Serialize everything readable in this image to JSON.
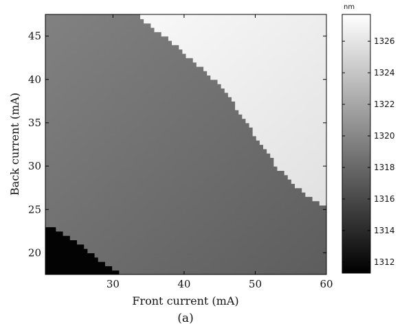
{
  "chart_data": {
    "type": "heatmap",
    "xlabel": "Front current (mA)",
    "ylabel": "Back current (mA)",
    "caption": "(a)",
    "colorbar_unit": "nm",
    "xlim": [
      20.5,
      60
    ],
    "ylim": [
      17.5,
      47.5
    ],
    "xticks": [
      30,
      40,
      50,
      60
    ],
    "yticks": [
      20,
      25,
      30,
      35,
      40,
      45
    ],
    "colorbar_range": [
      1311.3,
      1327.7
    ],
    "colorbar_ticks": [
      1312,
      1314,
      1316,
      1318,
      1320,
      1322,
      1324,
      1326
    ],
    "colormap": "gray",
    "regions": [
      {
        "name": "upper mode (light)",
        "value_range": [
          1325.5,
          1327.6
        ],
        "boundary": [
          [
            33.2,
            47.5
          ],
          [
            38,
            44.5
          ],
          [
            44,
            40.2
          ],
          [
            47,
            37.2
          ],
          [
            50,
            33.5
          ],
          [
            53,
            30
          ],
          [
            56,
            27.5
          ],
          [
            58.5,
            26
          ],
          [
            60,
            25.3
          ]
        ]
      },
      {
        "name": "middle mode (gray)",
        "value_range": [
          1317.3,
          1319.6
        ]
      },
      {
        "name": "lower mode (dark)",
        "value_range": [
          1311.4,
          1311.6
        ],
        "boundary": [
          [
            20.5,
            23.3
          ],
          [
            22,
            22.8
          ],
          [
            25,
            21.2
          ],
          [
            28,
            19.3
          ],
          [
            31.5,
            17.5
          ]
        ]
      }
    ]
  }
}
